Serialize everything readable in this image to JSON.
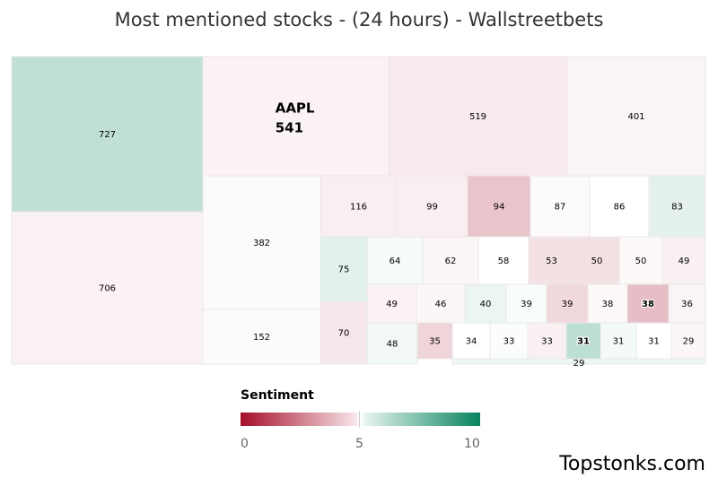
{
  "title": "Most mentioned stocks - (24 hours) - Wallstreetbets",
  "chart_data": {
    "type": "treemap",
    "color_metric": "Sentiment",
    "color_scale": {
      "min": 0,
      "mid": 5,
      "max": 10,
      "min_color": "#a50f2a",
      "mid_color": "#ffffff",
      "max_color": "#07835f"
    },
    "cells": [
      {
        "label": "",
        "value": 727,
        "sentiment": 7.8
      },
      {
        "label": "",
        "value": 706,
        "sentiment": 4.4
      },
      {
        "label": "AAPL",
        "value": 541,
        "sentiment": 4.4
      },
      {
        "label": "",
        "value": 519,
        "sentiment": 4.0
      },
      {
        "label": "",
        "value": 401,
        "sentiment": 4.5
      },
      {
        "label": "",
        "value": 382,
        "sentiment": 4.8
      },
      {
        "label": "",
        "value": 152,
        "sentiment": 4.8
      },
      {
        "label": "",
        "value": 116,
        "sentiment": 4.2
      },
      {
        "label": "",
        "value": 99,
        "sentiment": 4.2
      },
      {
        "label": "",
        "value": 94,
        "sentiment": 2.3
      },
      {
        "label": "",
        "value": 87,
        "sentiment": 4.8
      },
      {
        "label": "",
        "value": 86,
        "sentiment": 5.0
      },
      {
        "label": "",
        "value": 83,
        "sentiment": 6.2
      },
      {
        "label": "",
        "value": 75,
        "sentiment": 6.3
      },
      {
        "label": "",
        "value": 70,
        "sentiment": 3.9
      },
      {
        "label": "",
        "value": 64,
        "sentiment": 5.4
      },
      {
        "label": "",
        "value": 62,
        "sentiment": 4.6
      },
      {
        "label": "",
        "value": 58,
        "sentiment": 5.0
      },
      {
        "label": "",
        "value": 53,
        "sentiment": 3.6
      },
      {
        "label": "",
        "value": 50,
        "sentiment": 3.6
      },
      {
        "label": "",
        "value": 50,
        "sentiment": 4.7
      },
      {
        "label": "",
        "value": 49,
        "sentiment": 4.3
      },
      {
        "label": "",
        "value": 49,
        "sentiment": 4.4
      },
      {
        "label": "",
        "value": 48,
        "sentiment": 5.6
      },
      {
        "label": "",
        "value": 46,
        "sentiment": 4.6
      },
      {
        "label": "",
        "value": 40,
        "sentiment": 5.9
      },
      {
        "label": "",
        "value": 39,
        "sentiment": 5.3
      },
      {
        "label": "",
        "value": 39,
        "sentiment": 3.2
      },
      {
        "label": "",
        "value": 38,
        "sentiment": 4.7
      },
      {
        "label": "",
        "value": 38,
        "sentiment": 2.0
      },
      {
        "label": "",
        "value": 36,
        "sentiment": 4.5
      },
      {
        "label": "",
        "value": 35,
        "sentiment": 3.0
      },
      {
        "label": "",
        "value": 34,
        "sentiment": 5.0
      },
      {
        "label": "",
        "value": 33,
        "sentiment": 5.2
      },
      {
        "label": "",
        "value": 33,
        "sentiment": 4.3
      },
      {
        "label": "",
        "value": 31,
        "sentiment": 8.0
      },
      {
        "label": "",
        "value": 31,
        "sentiment": 5.5
      },
      {
        "label": "",
        "value": 31,
        "sentiment": 5.0
      },
      {
        "label": "",
        "value": 29,
        "sentiment": 4.6
      },
      {
        "label": "",
        "value": 29,
        "sentiment": 5.8
      }
    ]
  },
  "legend": {
    "title": "Sentiment",
    "ticks": [
      "0",
      "5",
      "10"
    ]
  },
  "brand": "Topstonks.com"
}
